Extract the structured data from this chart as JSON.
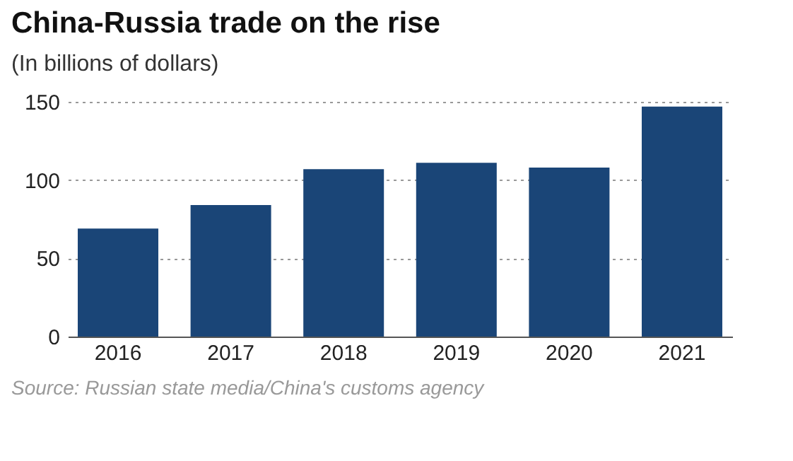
{
  "chart_data": {
    "type": "bar",
    "title": "China-Russia trade on the rise",
    "subtitle": "(In billions of dollars)",
    "categories": [
      "2016",
      "2017",
      "2018",
      "2019",
      "2020",
      "2021"
    ],
    "values": [
      69,
      84,
      107,
      111,
      108,
      147
    ],
    "color": "#1a4577",
    "ylim": [
      0,
      150
    ],
    "yticks": [
      0,
      50,
      100,
      150
    ],
    "grid": "y",
    "annotations": [
      "Source: Russian state media/China's customs agency"
    ]
  }
}
